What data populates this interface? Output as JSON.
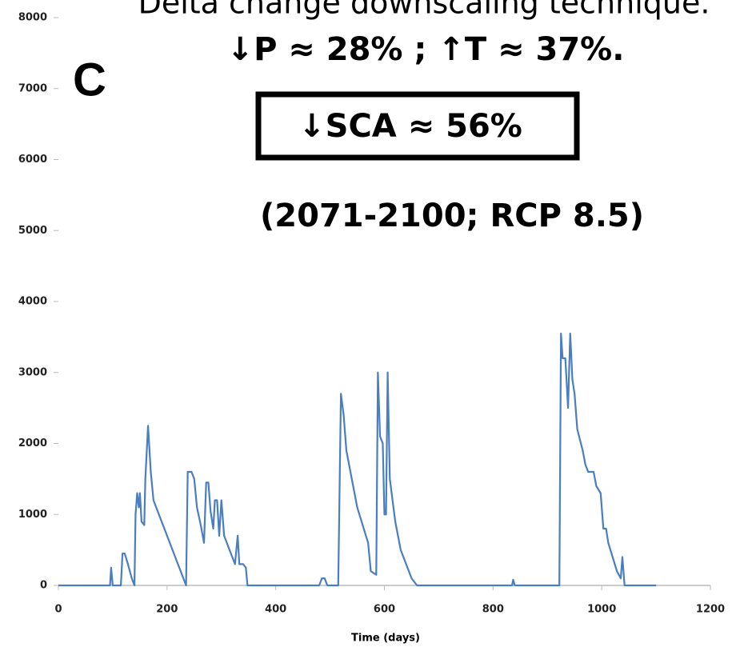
{
  "chart_data": {
    "type": "line",
    "title": "Delta change downscaling technique.",
    "subtitle": "↓P ≈ 28% ; ↑T ≈ 37%.",
    "annotations": [
      "C",
      "↓SCA ≈ 56%",
      "(2071-2100; RCP 8.5)"
    ],
    "x_label": "Time (days)",
    "color": "#4a7ebf",
    "x": [
      0,
      95,
      97,
      100,
      115,
      118,
      122,
      128,
      135,
      140,
      142,
      145,
      148,
      150,
      153,
      158,
      160,
      165,
      170,
      175,
      180,
      190,
      200,
      210,
      220,
      230,
      235,
      238,
      245,
      250,
      255,
      262,
      268,
      272,
      276,
      280,
      285,
      288,
      292,
      296,
      300,
      305,
      310,
      320,
      325,
      330,
      333,
      340,
      345,
      348,
      480,
      485,
      490,
      495,
      515,
      520,
      525,
      530,
      540,
      550,
      560,
      570,
      575,
      585,
      588,
      592,
      597,
      600,
      603,
      606,
      610,
      620,
      630,
      640,
      650,
      660,
      835,
      837,
      840,
      922,
      925,
      928,
      933,
      938,
      942,
      946,
      950,
      955,
      965,
      970,
      975,
      985,
      990,
      998,
      1003,
      1008,
      1012,
      1020,
      1028,
      1035,
      1038,
      1042,
      1100
    ],
    "values": [
      0,
      0,
      250,
      0,
      0,
      450,
      450,
      300,
      100,
      0,
      1000,
      1300,
      1100,
      1300,
      900,
      850,
      1500,
      2250,
      1600,
      1200,
      1100,
      900,
      700,
      500,
      300,
      100,
      0,
      1600,
      1600,
      1500,
      1100,
      850,
      600,
      1450,
      1450,
      1050,
      800,
      1200,
      1200,
      700,
      1200,
      700,
      600,
      400,
      300,
      700,
      300,
      300,
      250,
      0,
      0,
      100,
      100,
      0,
      0,
      2700,
      2400,
      1900,
      1500,
      1100,
      850,
      600,
      200,
      150,
      3000,
      2100,
      2000,
      1000,
      1000,
      3000,
      1500,
      900,
      500,
      300,
      100,
      0,
      0,
      80,
      0,
      0,
      3550,
      3200,
      3200,
      2500,
      3550,
      2900,
      2700,
      2200,
      1900,
      1700,
      1600,
      1600,
      1400,
      1300,
      800,
      800,
      600,
      400,
      200,
      100,
      400,
      0,
      0
    ],
    "xlim": [
      0,
      1200
    ],
    "ylim": [
      0,
      8000
    ],
    "xticks": [
      0,
      200,
      400,
      600,
      800,
      1000,
      1200
    ],
    "yticks": [
      0,
      1000,
      2000,
      3000,
      4000,
      5000,
      6000,
      7000,
      8000
    ]
  }
}
